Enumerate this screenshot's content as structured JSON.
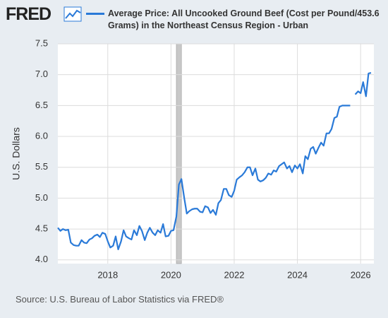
{
  "chart_data": {
    "type": "line",
    "logo": "FRED",
    "title": "Average Price: All Uncooked Ground Beef (Cost per Pound/453.6 Grams) in the Northeast Census Region - Urban",
    "y_label": "U.S. Dollars",
    "source": "Source: U.S. Bureau of Labor Statistics via FRED®",
    "xlim": [
      2016.42,
      2026.42
    ],
    "xticks": [
      2018,
      2020,
      2022,
      2024,
      2026
    ],
    "ylim": [
      3.94,
      7.5
    ],
    "yticks": [
      {
        "value": 4,
        "label": "4.0"
      },
      4.5,
      {
        "value": 5,
        "label": "5.0"
      },
      5.5,
      {
        "value": 6,
        "label": "6.0"
      },
      6.5,
      {
        "value": 7,
        "label": "7.0"
      },
      7.5
    ],
    "grid": true,
    "recessions": [
      {
        "start": 2020.17,
        "end": 2020.33
      }
    ],
    "x": [
      2016.42,
      2016.5,
      2016.58,
      2016.67,
      2016.75,
      2016.83,
      2016.92,
      2017,
      2017.08,
      2017.17,
      2017.25,
      2017.33,
      2017.42,
      2017.5,
      2017.58,
      2017.67,
      2017.75,
      2017.83,
      2017.92,
      2018,
      2018.08,
      2018.17,
      2018.25,
      2018.33,
      2018.42,
      2018.5,
      2018.58,
      2018.67,
      2018.75,
      2018.83,
      2018.92,
      2019,
      2019.08,
      2019.17,
      2019.25,
      2019.33,
      2019.42,
      2019.5,
      2019.58,
      2019.67,
      2019.75,
      2019.83,
      2019.92,
      2020,
      2020.08,
      2020.17,
      2020.25,
      2020.33,
      2020.42,
      2020.5,
      2020.58,
      2020.67,
      2020.75,
      2020.83,
      2020.92,
      2021,
      2021.08,
      2021.17,
      2021.25,
      2021.33,
      2021.42,
      2021.5,
      2021.58,
      2021.67,
      2021.75,
      2021.83,
      2021.92,
      2022,
      2022.08,
      2022.17,
      2022.25,
      2022.33,
      2022.42,
      2022.5,
      2022.58,
      2022.67,
      2022.75,
      2022.83,
      2022.92,
      2023,
      2023.08,
      2023.17,
      2023.25,
      2023.33,
      2023.42,
      2023.5,
      2023.58,
      2023.67,
      2023.75,
      2023.83,
      2023.92,
      2024,
      2024.08,
      2024.17,
      2024.25,
      2024.33,
      2024.42,
      2024.5,
      2024.58,
      2024.67,
      2024.75,
      2024.83,
      2024.92,
      2025,
      2025.08,
      2025.17,
      2025.25,
      2025.33,
      2025.42,
      2025.5,
      2025.58,
      2025.67,
      2025.75,
      2025.83,
      2025.92,
      2026,
      2026.08,
      2026.17,
      2026.25,
      2026.33
    ],
    "series": [
      {
        "name": "Average Price: All Uncooked Ground Beef (Cost per Pound/453.6 Grams) in the Northeast Census Region - Urban",
        "color": "#2a7ad8",
        "values": [
          4.52,
          4.47,
          4.5,
          4.48,
          4.49,
          4.28,
          4.24,
          4.23,
          4.23,
          4.32,
          4.28,
          4.27,
          4.33,
          4.35,
          4.39,
          4.41,
          4.37,
          4.44,
          4.42,
          4.3,
          4.2,
          4.23,
          4.38,
          4.17,
          4.3,
          4.48,
          4.38,
          4.35,
          4.33,
          4.48,
          4.4,
          4.55,
          4.47,
          4.32,
          4.44,
          4.52,
          4.44,
          4.4,
          4.48,
          4.44,
          4.58,
          4.38,
          4.39,
          4.47,
          4.48,
          4.7,
          5.22,
          5.31,
          5.0,
          4.75,
          4.79,
          4.82,
          4.83,
          4.83,
          4.78,
          4.77,
          4.87,
          4.85,
          4.76,
          4.81,
          4.73,
          4.92,
          4.97,
          5.15,
          5.15,
          5.05,
          5.02,
          5.12,
          5.3,
          5.34,
          5.37,
          5.42,
          5.5,
          5.5,
          5.37,
          5.48,
          5.3,
          5.27,
          5.29,
          5.33,
          5.4,
          5.38,
          5.45,
          5.43,
          5.52,
          5.55,
          5.58,
          5.48,
          5.52,
          5.42,
          5.53,
          5.48,
          5.55,
          5.4,
          5.68,
          5.63,
          5.8,
          5.83,
          5.72,
          5.82,
          5.9,
          5.85,
          6.05,
          6.05,
          6.12,
          6.3,
          6.32,
          6.48,
          6.5,
          6.5,
          6.5,
          6.5,
          null,
          6.68,
          6.73,
          6.7,
          6.88,
          6.65,
          7.02,
          7.03
        ]
      }
    ]
  }
}
